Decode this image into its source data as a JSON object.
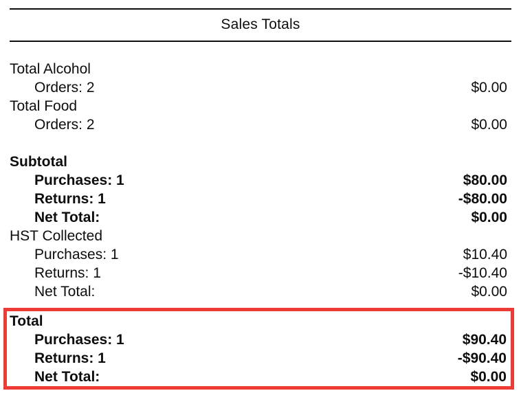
{
  "title": "Sales Totals",
  "groups": [
    {
      "heading": "Total Alcohol",
      "bold": false,
      "rows": [
        {
          "label": "Orders: 2",
          "value": "$0.00"
        }
      ]
    },
    {
      "heading": "Total Food",
      "bold": false,
      "rows": [
        {
          "label": "Orders: 2",
          "value": "$0.00"
        }
      ]
    },
    {
      "heading": "Subtotal",
      "bold": true,
      "rows": [
        {
          "label": "Purchases: 1",
          "value": "$80.00"
        },
        {
          "label": "Returns: 1",
          "value": "-$80.00"
        },
        {
          "label": "Net Total:",
          "value": "$0.00"
        }
      ]
    },
    {
      "heading": "HST Collected",
      "bold": false,
      "rows": [
        {
          "label": "Purchases: 1",
          "value": "$10.40"
        },
        {
          "label": "Returns: 1",
          "value": "-$10.40"
        },
        {
          "label": "Net Total:",
          "value": "$0.00"
        }
      ]
    },
    {
      "heading": "Total",
      "bold": true,
      "highlighted": true,
      "rows": [
        {
          "label": "Purchases: 1",
          "value": "$90.40"
        },
        {
          "label": "Returns: 1",
          "value": "-$90.40"
        },
        {
          "label": "Net Total:",
          "value": "$0.00"
        }
      ]
    }
  ],
  "colors": {
    "text": "#0d0d0d",
    "rule": "#0d0d0d",
    "highlight_border": "#ee3b36"
  }
}
